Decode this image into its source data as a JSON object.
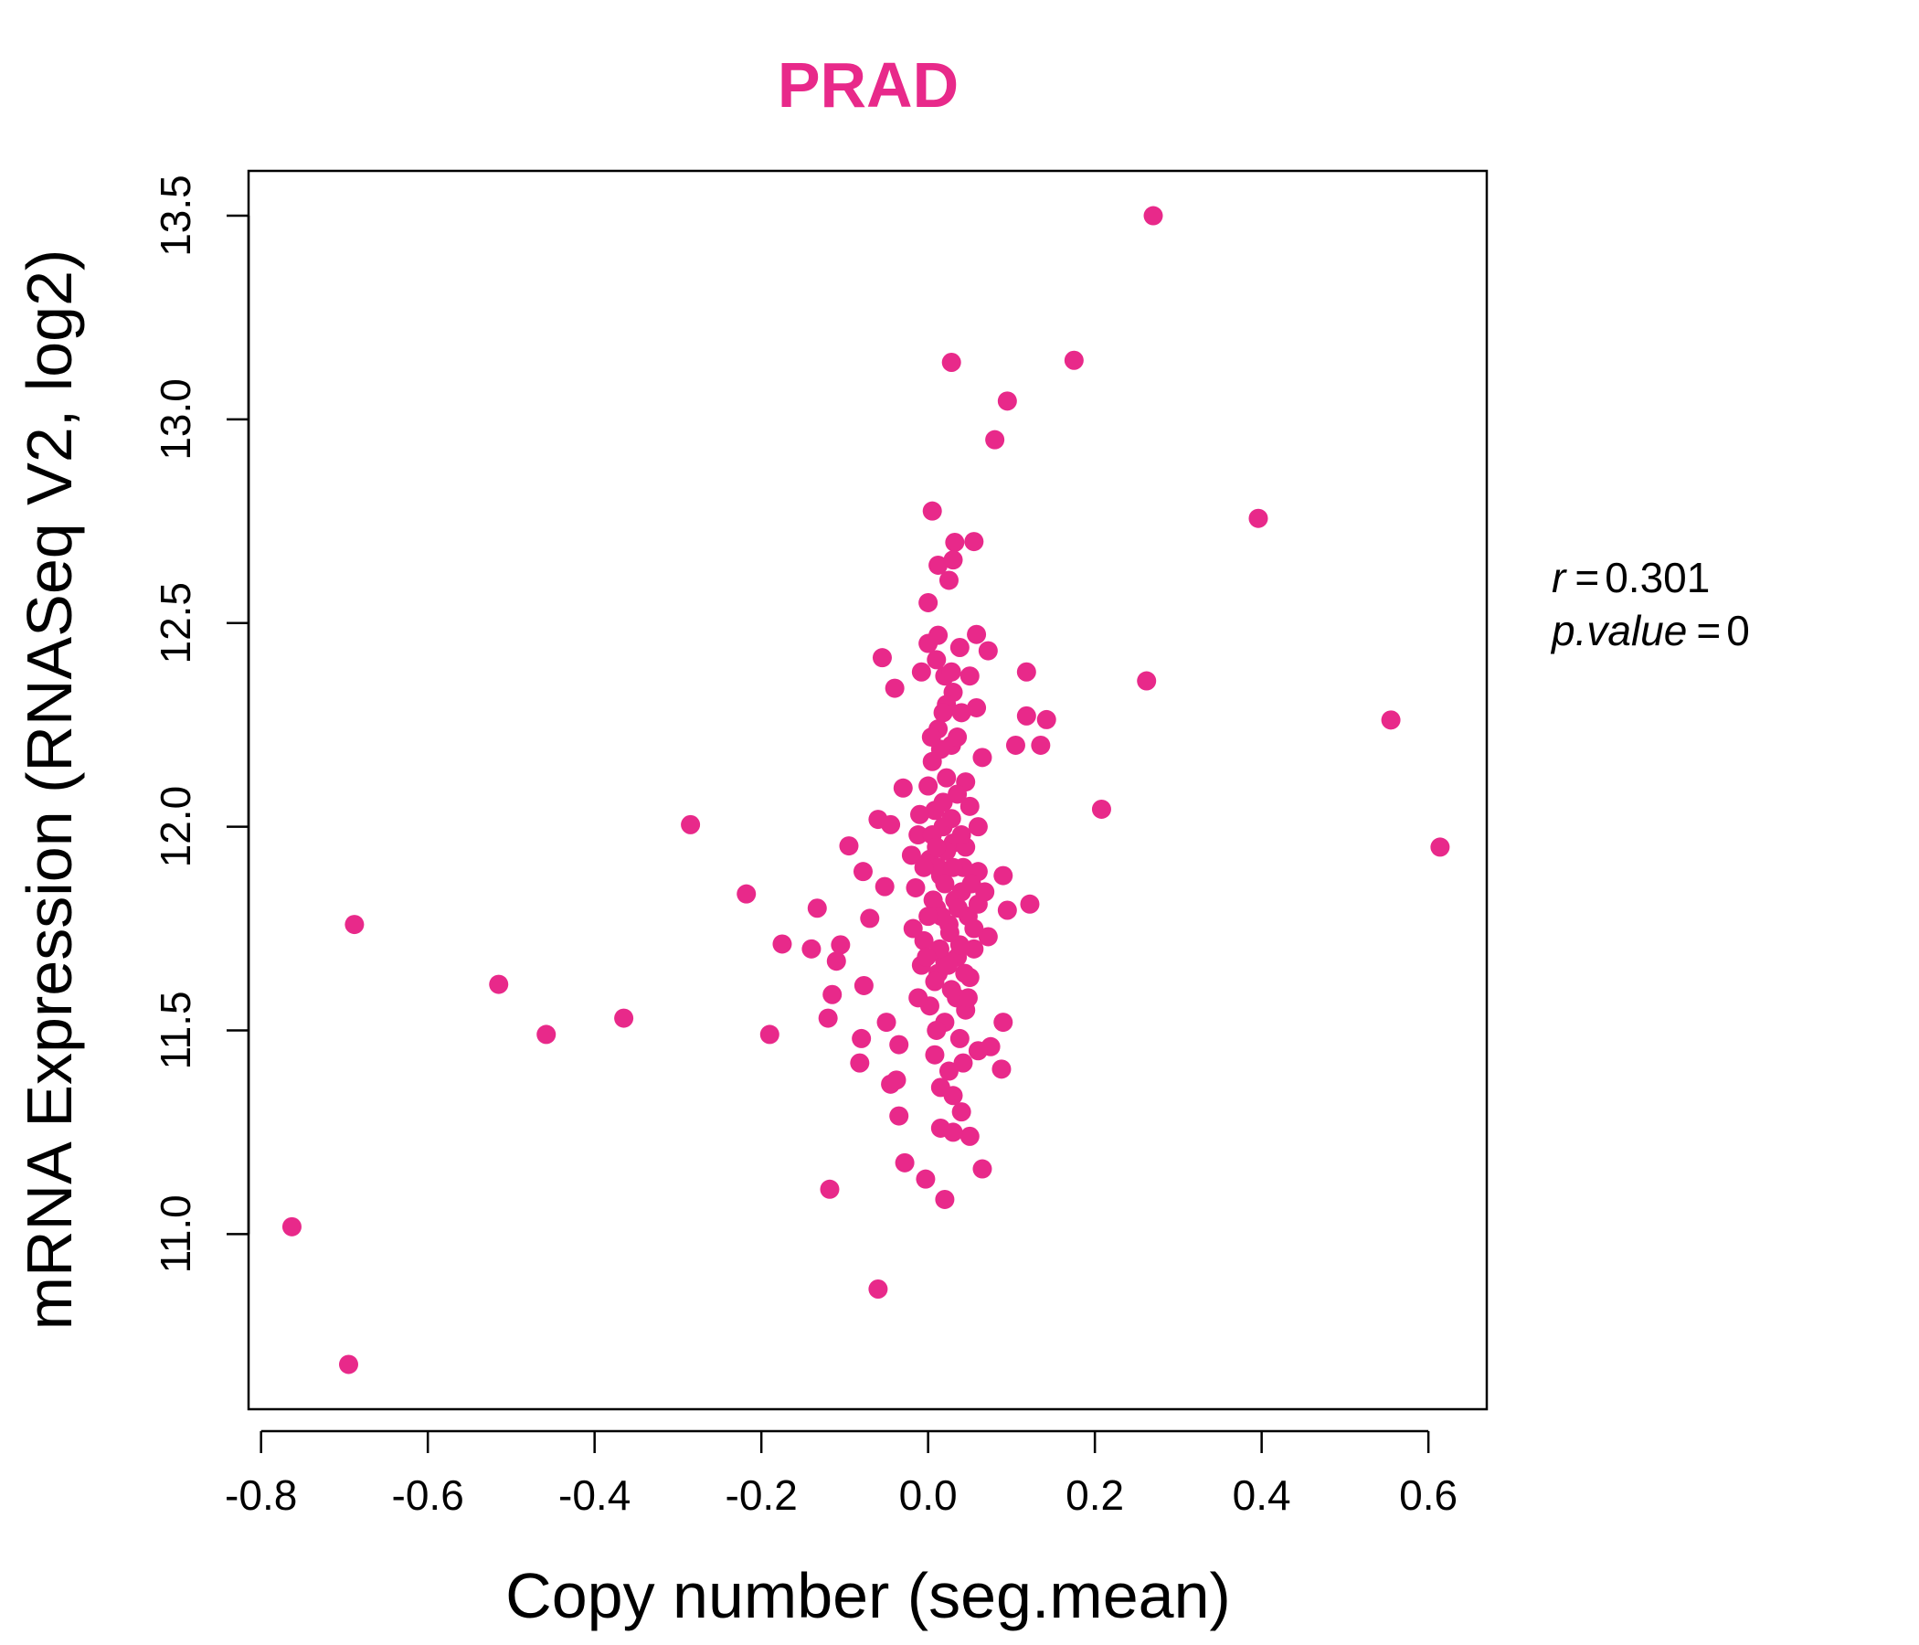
{
  "chart_data": {
    "type": "scatter",
    "title": "PRAD",
    "xlabel": "Copy number (seg.mean)",
    "ylabel": "mRNA Expression (RNASeq V2, log2)",
    "xlim": [
      -0.815,
      0.67
    ],
    "ylim": [
      10.57,
      13.61
    ],
    "xticks": [
      -0.8,
      -0.6,
      -0.4,
      -0.2,
      0.0,
      0.2,
      0.4,
      0.6
    ],
    "xtick_labels": [
      "-0.8",
      "-0.6",
      "-0.4",
      "-0.2",
      "0.0",
      "0.2",
      "0.4",
      "0.6"
    ],
    "yticks": [
      11.0,
      11.5,
      12.0,
      12.5,
      13.0,
      13.5
    ],
    "ytick_labels": [
      "11.0",
      "11.5",
      "12.0",
      "12.5",
      "13.0",
      "13.5"
    ],
    "point_color": "#e8298a",
    "title_color": "#e8298a",
    "annotation": {
      "r_label": "r",
      "r_eq": "=",
      "r_value": "0.301",
      "p_label": "p.value",
      "p_eq": "=",
      "p_value": "0"
    },
    "series": [
      {
        "name": "PRAD",
        "points": [
          [
            0.27,
            13.5
          ],
          [
            0.175,
            13.145
          ],
          [
            0.028,
            13.14
          ],
          [
            0.095,
            13.045
          ],
          [
            0.08,
            12.95
          ],
          [
            0.396,
            12.757
          ],
          [
            0.005,
            12.775
          ],
          [
            0.032,
            12.698
          ],
          [
            0.055,
            12.7
          ],
          [
            0.012,
            12.642
          ],
          [
            0.03,
            12.655
          ],
          [
            0.025,
            12.605
          ],
          [
            0.0,
            12.55
          ],
          [
            -0.055,
            12.415
          ],
          [
            0.262,
            12.358
          ],
          [
            -0.04,
            12.34
          ],
          [
            0.118,
            12.38
          ],
          [
            0.555,
            12.262
          ],
          [
            0.142,
            12.263
          ],
          [
            0.118,
            12.272
          ],
          [
            0.105,
            12.2
          ],
          [
            0.135,
            12.2
          ],
          [
            0.208,
            12.043
          ],
          [
            0.614,
            11.95
          ],
          [
            -0.285,
            12.005
          ],
          [
            -0.095,
            11.953
          ],
          [
            -0.06,
            12.018
          ],
          [
            -0.045,
            12.005
          ],
          [
            -0.078,
            11.89
          ],
          [
            -0.218,
            11.835
          ],
          [
            -0.133,
            11.8
          ],
          [
            -0.052,
            11.853
          ],
          [
            -0.07,
            11.775
          ],
          [
            -0.175,
            11.712
          ],
          [
            -0.14,
            11.7
          ],
          [
            -0.105,
            11.71
          ],
          [
            -0.11,
            11.67
          ],
          [
            -0.688,
            11.76
          ],
          [
            -0.515,
            11.613
          ],
          [
            -0.458,
            11.49
          ],
          [
            -0.365,
            11.53
          ],
          [
            -0.19,
            11.49
          ],
          [
            -0.115,
            11.588
          ],
          [
            -0.12,
            11.53
          ],
          [
            -0.077,
            11.61
          ],
          [
            -0.08,
            11.48
          ],
          [
            -0.082,
            11.42
          ],
          [
            -0.05,
            11.52
          ],
          [
            -0.035,
            11.465
          ],
          [
            -0.045,
            11.368
          ],
          [
            -0.038,
            11.378
          ],
          [
            -0.035,
            11.29
          ],
          [
            -0.028,
            11.175
          ],
          [
            -0.118,
            11.11
          ],
          [
            -0.003,
            11.135
          ],
          [
            0.02,
            11.085
          ],
          [
            0.065,
            11.16
          ],
          [
            0.015,
            11.26
          ],
          [
            0.05,
            11.24
          ],
          [
            0.04,
            11.3
          ],
          [
            0.088,
            11.405
          ],
          [
            0.09,
            11.52
          ],
          [
            0.075,
            11.46
          ],
          [
            0.095,
            11.795
          ],
          [
            0.09,
            11.88
          ],
          [
            0.122,
            11.81
          ],
          [
            0.072,
            11.73
          ],
          [
            -0.06,
            10.865
          ],
          [
            -0.763,
            11.018
          ],
          [
            -0.695,
            10.68
          ],
          [
            0.058,
            12.472
          ],
          [
            0.072,
            12.432
          ],
          [
            0.05,
            12.37
          ],
          [
            0.058,
            12.292
          ],
          [
            0.065,
            12.17
          ],
          [
            0.045,
            12.11
          ],
          [
            -0.03,
            12.095
          ],
          [
            0.06,
            12.0
          ],
          [
            -0.02,
            11.93
          ],
          [
            0.06,
            11.89
          ],
          [
            0.0,
            12.45
          ],
          [
            0.01,
            12.41
          ],
          [
            0.02,
            12.37
          ],
          [
            0.03,
            12.33
          ],
          [
            0.04,
            12.28
          ],
          [
            0.012,
            12.24
          ],
          [
            0.028,
            12.2
          ],
          [
            0.005,
            12.16
          ],
          [
            0.022,
            12.12
          ],
          [
            0.035,
            12.08
          ],
          [
            0.008,
            12.04
          ],
          [
            0.018,
            12.0
          ],
          [
            0.03,
            11.96
          ],
          [
            0.002,
            11.92
          ],
          [
            0.015,
            11.88
          ],
          [
            0.04,
            11.84
          ],
          [
            0.01,
            11.8
          ],
          [
            0.025,
            11.76
          ],
          [
            -0.005,
            11.72
          ],
          [
            0.035,
            11.68
          ],
          [
            0.012,
            11.64
          ],
          [
            0.028,
            11.6
          ],
          [
            0.002,
            11.56
          ],
          [
            0.02,
            11.52
          ],
          [
            0.038,
            11.48
          ],
          [
            0.008,
            11.44
          ],
          [
            0.025,
            11.4
          ],
          [
            0.015,
            11.36
          ],
          [
            0.03,
            11.34
          ],
          [
            0.045,
            11.55
          ],
          [
            0.05,
            11.63
          ],
          [
            0.055,
            11.7
          ],
          [
            0.048,
            11.78
          ],
          [
            0.052,
            11.86
          ],
          [
            0.045,
            11.95
          ],
          [
            -0.01,
            12.03
          ],
          [
            -0.012,
            11.98
          ],
          [
            -0.015,
            11.85
          ],
          [
            -0.018,
            11.75
          ],
          [
            -0.008,
            11.66
          ],
          [
            -0.012,
            11.58
          ],
          [
            0.0,
            12.1
          ],
          [
            0.015,
            12.19
          ],
          [
            0.035,
            12.22
          ],
          [
            0.022,
            12.3
          ],
          [
            0.042,
            11.9
          ],
          [
            0.032,
            11.82
          ],
          [
            0.06,
            11.81
          ],
          [
            0.068,
            11.84
          ],
          [
            0.038,
            11.71
          ],
          [
            0.02,
            11.67
          ],
          [
            0.01,
            11.5
          ],
          [
            0.042,
            11.42
          ],
          [
            0.06,
            11.45
          ],
          [
            0.03,
            11.25
          ],
          [
            0.012,
            11.9
          ],
          [
            0.022,
            11.94
          ],
          [
            0.005,
            11.98
          ],
          [
            0.028,
            12.02
          ],
          [
            0.018,
            12.06
          ],
          [
            0.006,
            11.82
          ],
          [
            0.016,
            11.78
          ],
          [
            0.026,
            11.74
          ],
          [
            0.036,
            11.8
          ],
          [
            0.014,
            11.7
          ],
          [
            0.024,
            11.66
          ],
          [
            0.008,
            11.62
          ],
          [
            0.034,
            11.58
          ],
          [
            0.044,
            11.64
          ],
          [
            -0.002,
            11.68
          ],
          [
            0.02,
            11.86
          ],
          [
            0.03,
            11.9
          ],
          [
            0.01,
            11.95
          ],
          [
            0.04,
            11.98
          ],
          [
            0.05,
            12.05
          ],
          [
            0.0,
            11.78
          ],
          [
            -0.005,
            11.9
          ],
          [
            0.055,
            11.75
          ],
          [
            0.048,
            11.58
          ],
          [
            0.004,
            12.22
          ],
          [
            0.018,
            12.28
          ],
          [
            0.028,
            12.38
          ],
          [
            0.012,
            12.47
          ],
          [
            0.038,
            12.44
          ],
          [
            -0.008,
            12.38
          ]
        ]
      }
    ]
  }
}
